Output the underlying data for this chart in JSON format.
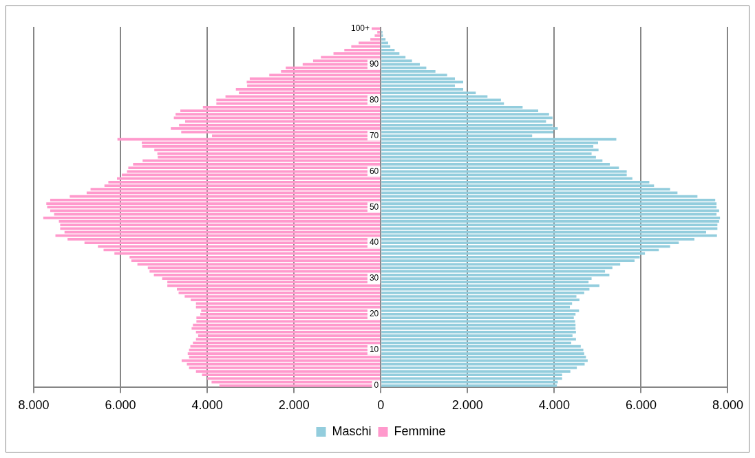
{
  "chart_data": {
    "type": "bar",
    "orientation": "horizontal",
    "categories": [
      "100+",
      null,
      null,
      null,
      null,
      null,
      null,
      null,
      null,
      null,
      "90",
      null,
      null,
      null,
      null,
      null,
      null,
      null,
      null,
      null,
      "80",
      null,
      null,
      null,
      null,
      null,
      null,
      null,
      null,
      null,
      "70",
      null,
      null,
      null,
      null,
      null,
      null,
      null,
      null,
      null,
      "60",
      null,
      null,
      null,
      null,
      null,
      null,
      null,
      null,
      null,
      "50",
      null,
      null,
      null,
      null,
      null,
      null,
      null,
      null,
      null,
      "40",
      null,
      null,
      null,
      null,
      null,
      null,
      null,
      null,
      null,
      "30",
      null,
      null,
      null,
      null,
      null,
      null,
      null,
      null,
      null,
      "20",
      null,
      null,
      null,
      null,
      null,
      null,
      null,
      null,
      null,
      "10",
      null,
      null,
      null,
      null,
      null,
      null,
      null,
      null,
      null,
      "0"
    ],
    "series": [
      {
        "name": "Maschi",
        "color": "#93cddd",
        "values": [
          null,
          40,
          50,
          110,
          170,
          220,
          320,
          430,
          570,
          720,
          900,
          1050,
          1260,
          1530,
          1710,
          1900,
          1710,
          1900,
          2190,
          2460,
          2770,
          2840,
          3270,
          3630,
          3880,
          3960,
          3810,
          3960,
          4080,
          3980,
          3490,
          5430,
          5010,
          4900,
          5020,
          4860,
          4960,
          5110,
          5280,
          5490,
          5670,
          5670,
          5800,
          6190,
          6300,
          6670,
          6840,
          7300,
          7710,
          7740,
          7740,
          7800,
          7740,
          7820,
          7800,
          7760,
          7760,
          7500,
          7750,
          7230,
          6870,
          6670,
          6410,
          6090,
          5970,
          5850,
          5520,
          5340,
          5170,
          5270,
          4860,
          4790,
          5040,
          4810,
          4690,
          4510,
          4580,
          4410,
          4360,
          4570,
          4490,
          4450,
          4480,
          4490,
          4490,
          4500,
          4420,
          4500,
          4390,
          4610,
          4670,
          4690,
          4730,
          4770,
          4700,
          4520,
          4370,
          4180,
          4180,
          4080,
          4060
        ]
      },
      {
        "name": "Femmine",
        "color": "#ff99cc",
        "values": [
          -210,
          -80,
          -140,
          -240,
          -510,
          -680,
          -840,
          -1090,
          -1380,
          -1560,
          -1800,
          -2190,
          -2300,
          -2570,
          -3020,
          -3090,
          -3080,
          -3340,
          -3270,
          -3580,
          -3790,
          -3790,
          -4100,
          -4620,
          -4730,
          -4770,
          -4510,
          -4650,
          -4840,
          -4600,
          -3890,
          -6070,
          -5510,
          -5500,
          -5220,
          -5150,
          -5140,
          -5490,
          -5710,
          -5820,
          -5850,
          -5970,
          -6080,
          -6280,
          -6370,
          -6690,
          -6780,
          -7170,
          -7620,
          -7710,
          -7690,
          -7620,
          -7530,
          -7780,
          -7420,
          -7390,
          -7390,
          -7290,
          -7500,
          -7220,
          -6830,
          -6520,
          -6390,
          -6140,
          -5790,
          -5750,
          -5610,
          -5370,
          -5330,
          -5230,
          -5040,
          -4920,
          -4920,
          -4700,
          -4660,
          -4520,
          -4380,
          -4260,
          -4260,
          -4140,
          -4160,
          -4250,
          -4250,
          -4330,
          -4360,
          -4260,
          -4210,
          -4260,
          -4330,
          -4390,
          -4420,
          -4450,
          -4420,
          -4590,
          -4470,
          -4420,
          -4260,
          -4120,
          -4000,
          -3900,
          -3720
        ]
      }
    ],
    "xlim": [
      -8000,
      8000
    ],
    "xticks": [
      {
        "value": -8000,
        "label": "8.000"
      },
      {
        "value": -6000,
        "label": "6.000"
      },
      {
        "value": -4000,
        "label": "4.000"
      },
      {
        "value": -2000,
        "label": "2.000"
      },
      0,
      {
        "value": 2000,
        "label": "2.000"
      },
      {
        "value": 4000,
        "label": "4.000"
      },
      {
        "value": 6000,
        "label": "6.000"
      },
      {
        "value": 8000,
        "label": "8.000"
      }
    ],
    "grid": "x",
    "legend": "bottom",
    "stacked": true
  }
}
